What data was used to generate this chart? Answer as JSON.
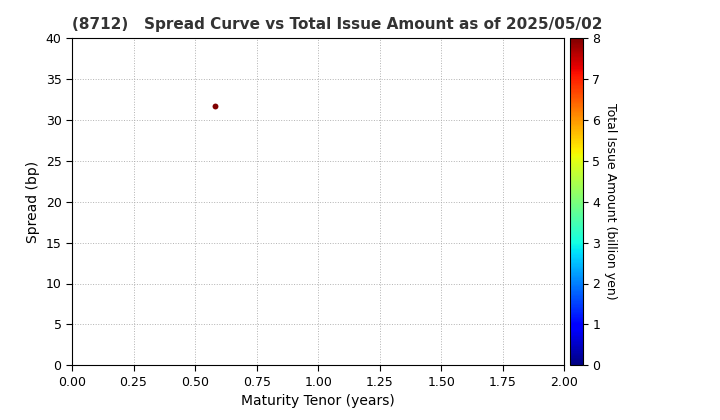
{
  "title": "(8712)   Spread Curve vs Total Issue Amount as of 2025/05/02",
  "xlabel": "Maturity Tenor (years)",
  "ylabel": "Spread (bp)",
  "colorbar_label": "Total Issue Amount (billion yen)",
  "xlim": [
    0.0,
    2.0
  ],
  "ylim": [
    0,
    40
  ],
  "xticks": [
    0.0,
    0.25,
    0.5,
    0.75,
    1.0,
    1.25,
    1.5,
    1.75,
    2.0
  ],
  "yticks": [
    0,
    5,
    10,
    15,
    20,
    25,
    30,
    35,
    40
  ],
  "colorbar_min": 0,
  "colorbar_max": 8,
  "colorbar_ticks": [
    0,
    1,
    2,
    3,
    4,
    5,
    6,
    7,
    8
  ],
  "scatter_x": [
    0.58
  ],
  "scatter_y": [
    31.7
  ],
  "scatter_color_value": [
    8.0
  ],
  "point_size": 18,
  "grid_color": "#aaaaaa",
  "background_color": "#ffffff",
  "title_fontsize": 11,
  "axis_fontsize": 10,
  "tick_fontsize": 9,
  "colorbar_fontsize": 9,
  "title_color": "#333333"
}
